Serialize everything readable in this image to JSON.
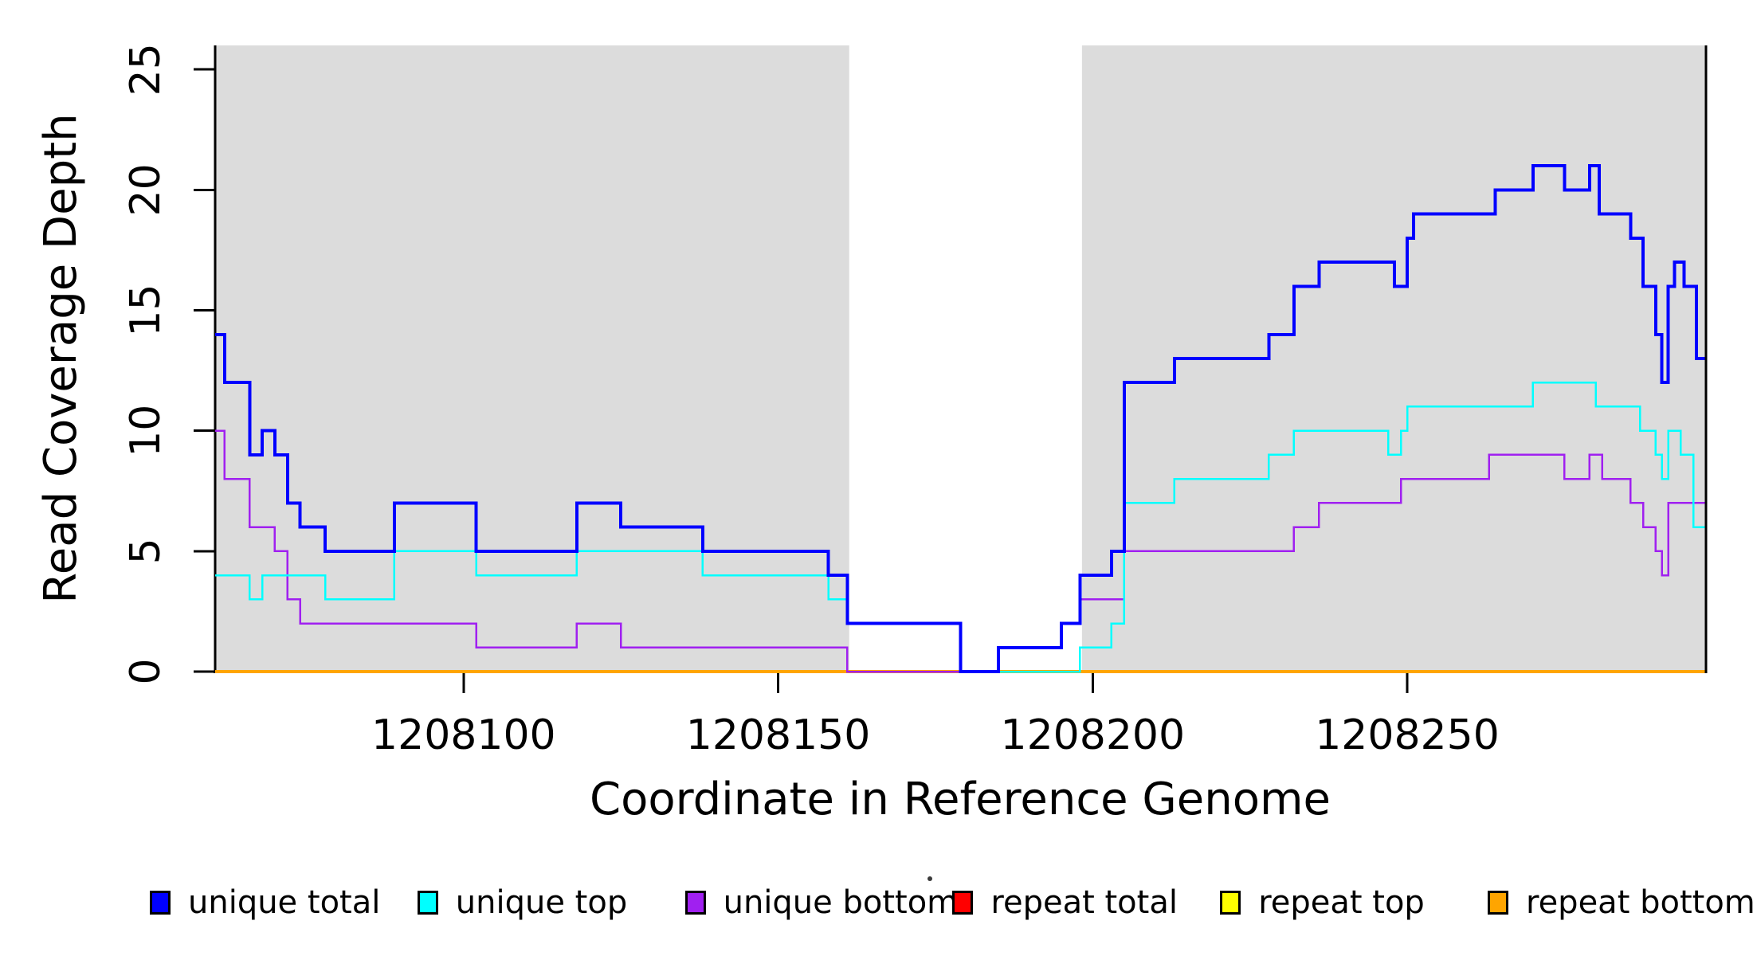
{
  "chart_data": {
    "type": "line",
    "subtype": "step-coverage-plot",
    "title": "",
    "xlabel": "Coordinate in Reference Genome",
    "ylabel": "Read Coverage Depth",
    "xlim": [
      1208060.5,
      1208297.5
    ],
    "ylim": [
      0,
      26
    ],
    "x_ticks": [
      1208100,
      1208150,
      1208200,
      1208250
    ],
    "y_ticks": [
      0,
      5,
      10,
      15,
      20,
      25
    ],
    "grid": false,
    "legend_position": "bottom",
    "shaded_region_color": "#DCDCDC",
    "shaded_regions": [
      {
        "x0": 1208060.5,
        "x1": 1208161.3
      },
      {
        "x0": 1208198.3,
        "x1": 1208297.5
      }
    ],
    "series": [
      {
        "name": "unique total",
        "color": "#0000FF",
        "width": 4,
        "z": 6,
        "steps": [
          [
            1208060,
            14
          ],
          [
            1208062,
            12
          ],
          [
            1208066,
            9
          ],
          [
            1208068,
            10
          ],
          [
            1208070,
            9
          ],
          [
            1208072,
            7
          ],
          [
            1208074,
            6
          ],
          [
            1208078,
            5
          ],
          [
            1208089,
            7
          ],
          [
            1208102,
            5
          ],
          [
            1208118,
            7
          ],
          [
            1208125,
            6
          ],
          [
            1208138,
            5
          ],
          [
            1208158,
            4
          ],
          [
            1208161,
            2
          ],
          [
            1208179,
            0
          ],
          [
            1208185,
            1
          ],
          [
            1208195,
            2
          ],
          [
            1208198,
            4
          ],
          [
            1208203,
            5
          ],
          [
            1208205,
            12
          ],
          [
            1208213,
            13
          ],
          [
            1208228,
            14
          ],
          [
            1208232,
            16
          ],
          [
            1208236,
            17
          ],
          [
            1208248,
            16
          ],
          [
            1208250,
            18
          ],
          [
            1208251,
            19
          ],
          [
            1208264,
            20
          ],
          [
            1208270,
            21
          ],
          [
            1208275,
            20
          ],
          [
            1208279,
            21
          ],
          [
            1208280.5,
            19
          ],
          [
            1208285.5,
            18
          ],
          [
            1208287.5,
            16
          ],
          [
            1208289.5,
            14
          ],
          [
            1208290.5,
            12
          ],
          [
            1208291.5,
            16
          ],
          [
            1208292.5,
            17
          ],
          [
            1208294,
            16
          ],
          [
            1208296,
            13
          ]
        ]
      },
      {
        "name": "unique top",
        "color": "#00FFFF",
        "width": 2.5,
        "z": 5,
        "steps": [
          [
            1208060,
            4
          ],
          [
            1208066,
            3
          ],
          [
            1208068,
            4
          ],
          [
            1208078,
            3
          ],
          [
            1208089,
            5
          ],
          [
            1208102,
            4
          ],
          [
            1208118,
            5
          ],
          [
            1208138,
            4
          ],
          [
            1208158,
            3
          ],
          [
            1208161,
            2
          ],
          [
            1208179,
            0
          ],
          [
            1208198,
            1
          ],
          [
            1208203,
            2
          ],
          [
            1208205,
            7
          ],
          [
            1208213,
            8
          ],
          [
            1208228,
            9
          ],
          [
            1208232,
            10
          ],
          [
            1208247,
            9
          ],
          [
            1208249,
            10
          ],
          [
            1208250,
            11
          ],
          [
            1208270,
            12
          ],
          [
            1208280,
            11
          ],
          [
            1208287,
            10
          ],
          [
            1208289.5,
            9
          ],
          [
            1208290.5,
            8
          ],
          [
            1208291.5,
            10
          ],
          [
            1208293.5,
            9
          ],
          [
            1208295.5,
            6
          ]
        ]
      },
      {
        "name": "unique bottom",
        "color": "#A020F0",
        "width": 2.5,
        "z": 4,
        "steps": [
          [
            1208060,
            10
          ],
          [
            1208062,
            8
          ],
          [
            1208066,
            6
          ],
          [
            1208070,
            5
          ],
          [
            1208072,
            3
          ],
          [
            1208074,
            2
          ],
          [
            1208102,
            1
          ],
          [
            1208118,
            2
          ],
          [
            1208125,
            1
          ],
          [
            1208161,
            0
          ],
          [
            1208185,
            1
          ],
          [
            1208195,
            2
          ],
          [
            1208198,
            3
          ],
          [
            1208205,
            5
          ],
          [
            1208232,
            6
          ],
          [
            1208236,
            7
          ],
          [
            1208249,
            8
          ],
          [
            1208263,
            9
          ],
          [
            1208275,
            8
          ],
          [
            1208279,
            9
          ],
          [
            1208281,
            8
          ],
          [
            1208285.5,
            7
          ],
          [
            1208287.5,
            6
          ],
          [
            1208289.5,
            5
          ],
          [
            1208290.5,
            4
          ],
          [
            1208291.5,
            7
          ]
        ]
      },
      {
        "name": "repeat total",
        "color": "#FF0000",
        "width": 3,
        "z": 1,
        "steps": [
          [
            1208060,
            0
          ]
        ]
      },
      {
        "name": "repeat top",
        "color": "#FFFF00",
        "width": 3,
        "z": 2,
        "steps": [
          [
            1208060,
            0
          ]
        ]
      },
      {
        "name": "repeat bottom",
        "color": "#FFA500",
        "width": 4,
        "z": 3,
        "steps": [
          [
            1208060,
            0
          ]
        ]
      }
    ],
    "legend": [
      {
        "label": "unique total",
        "color": "#0000FF"
      },
      {
        "label": "unique top",
        "color": "#00FFFF"
      },
      {
        "label": "unique bottom",
        "color": "#A020F0"
      },
      {
        "label": "repeat total",
        "color": "#FF0000"
      },
      {
        "label": "repeat top",
        "color": "#FFFF00"
      },
      {
        "label": "repeat bottom",
        "color": "#FFA500"
      }
    ]
  }
}
